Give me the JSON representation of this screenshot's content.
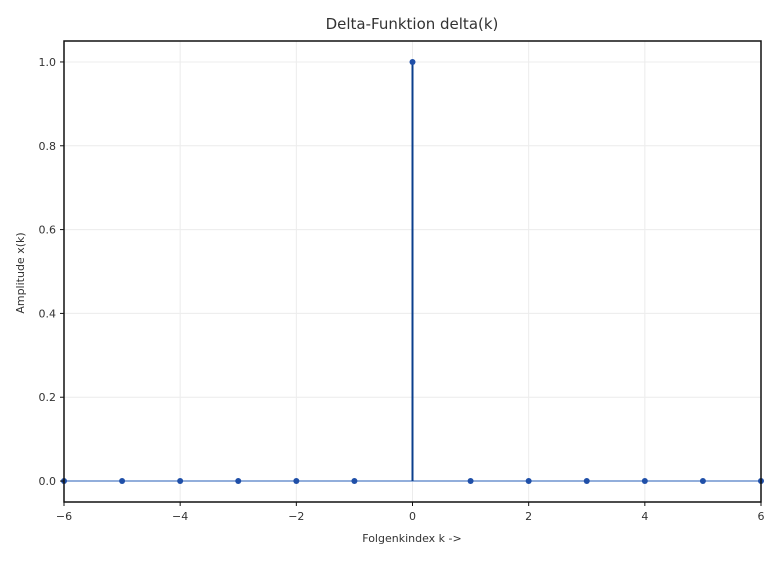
{
  "chart_data": {
    "type": "stem",
    "title": "Delta-Funktion delta(k)",
    "xlabel": "Folgenkindex k ->",
    "ylabel": "Amplitude x(k)",
    "xlim": [
      -6,
      6
    ],
    "ylim": [
      -0.05,
      1.05
    ],
    "xticks": [
      -6,
      -4,
      -2,
      0,
      2,
      4,
      6
    ],
    "xtick_labels": [
      "−6",
      "−4",
      "−2",
      "0",
      "2",
      "4",
      "6"
    ],
    "yticks": [
      0.0,
      0.2,
      0.4,
      0.6,
      0.8,
      1.0
    ],
    "ytick_labels": [
      "0.0",
      "0.2",
      "0.4",
      "0.6",
      "0.8",
      "1.0"
    ],
    "grid": true,
    "baseline": 0,
    "series": [
      {
        "x": [
          -6,
          -5,
          -4,
          -3,
          -2,
          -1,
          0,
          1,
          2,
          3,
          4,
          5,
          6
        ],
        "y": [
          0,
          0,
          0,
          0,
          0,
          0,
          1,
          0,
          0,
          0,
          0,
          0,
          0
        ]
      }
    ],
    "colors": {
      "stem": "#0b3f8c",
      "marker": "#1f4fa8",
      "baseline": "#6f94cf",
      "grid": "#ececec",
      "frame": "#111111"
    }
  }
}
